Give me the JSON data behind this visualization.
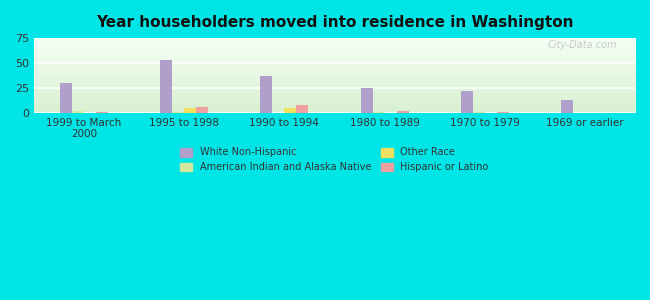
{
  "title": "Year householders moved into residence in Washington",
  "categories": [
    "1999 to March\n2000",
    "1995 to 1998",
    "1990 to 1994",
    "1980 to 1989",
    "1970 to 1979",
    "1969 or earlier"
  ],
  "series": {
    "White Non-Hispanic": [
      30,
      53,
      37,
      25,
      22,
      13
    ],
    "American Indian and Alaska Native": [
      2,
      1,
      0,
      1,
      0.5,
      0
    ],
    "Other Race": [
      0,
      5,
      5,
      0,
      0,
      0
    ],
    "Hispanic or Latino": [
      1,
      6,
      8,
      2,
      0.5,
      0
    ]
  },
  "colors": {
    "White Non-Hispanic": "#b09fca",
    "American Indian and Alaska Native": "#d4e8a0",
    "Other Race": "#f0e060",
    "Hispanic or Latino": "#f0a0a0"
  },
  "legend_order_col1": [
    "White Non-Hispanic",
    "Other Race"
  ],
  "legend_order_col2": [
    "American Indian and Alaska Native",
    "Hispanic or Latino"
  ],
  "ylim": [
    0,
    75
  ],
  "yticks": [
    0,
    25,
    50,
    75
  ],
  "background_outer": "#00e5e5",
  "grid_color": "#ffffff",
  "bar_width": 0.12,
  "watermark": "City-Data.com"
}
